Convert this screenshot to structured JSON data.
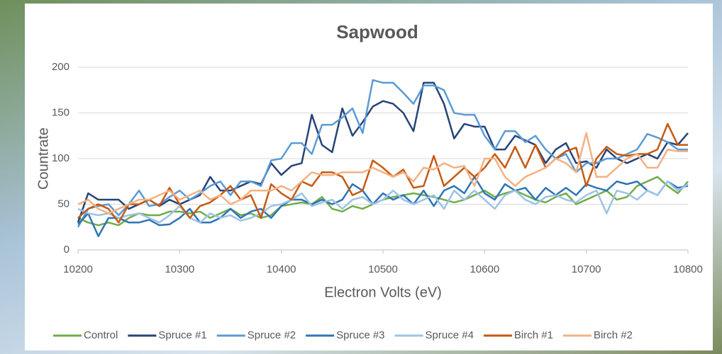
{
  "chart_data": {
    "type": "line",
    "title": "Sapwood",
    "x_label": "Electron Volts (eV)",
    "y_label": "Countrate",
    "xlim": [
      10200,
      10800
    ],
    "xticks": [
      10200,
      10300,
      10400,
      10500,
      10600,
      10700,
      10800
    ],
    "ylim": [
      0,
      200
    ],
    "yticks": [
      0,
      50,
      100,
      150,
      200
    ],
    "grid": true,
    "legend": "bottom",
    "x": [
      10200,
      10210,
      10220,
      10230,
      10240,
      10250,
      10260,
      10270,
      10280,
      10290,
      10300,
      10310,
      10320,
      10330,
      10340,
      10350,
      10360,
      10370,
      10380,
      10390,
      10400,
      10410,
      10420,
      10430,
      10440,
      10450,
      10460,
      10470,
      10480,
      10490,
      10500,
      10510,
      10520,
      10530,
      10540,
      10550,
      10560,
      10570,
      10580,
      10590,
      10600,
      10610,
      10620,
      10630,
      10640,
      10650,
      10660,
      10670,
      10680,
      10690,
      10700,
      10710,
      10720,
      10730,
      10740,
      10750,
      10760,
      10770,
      10780,
      10790,
      10800
    ],
    "series": [
      {
        "name": "Control",
        "color": "#70ad47",
        "values": [
          35,
          30,
          27,
          30,
          27,
          35,
          40,
          38,
          38,
          42,
          42,
          40,
          42,
          35,
          40,
          45,
          38,
          40,
          35,
          38,
          48,
          50,
          52,
          50,
          58,
          45,
          42,
          48,
          45,
          50,
          55,
          58,
          60,
          62,
          60,
          58,
          55,
          52,
          55,
          60,
          65,
          58,
          62,
          65,
          60,
          55,
          52,
          58,
          62,
          50,
          55,
          60,
          65,
          55,
          58,
          70,
          75,
          80,
          70,
          62,
          75
        ]
      },
      {
        "name": "Spruce #1",
        "color": "#264478",
        "values": [
          30,
          62,
          55,
          55,
          55,
          45,
          50,
          55,
          48,
          55,
          50,
          55,
          60,
          80,
          65,
          65,
          70,
          75,
          72,
          95,
          82,
          92,
          95,
          148,
          115,
          107,
          155,
          125,
          140,
          157,
          163,
          160,
          150,
          130,
          183,
          183,
          160,
          122,
          138,
          135,
          135,
          110,
          110,
          125,
          120,
          115,
          95,
          110,
          117,
          95,
          97,
          90,
          110,
          100,
          95,
          100,
          105,
          100,
          118,
          115,
          128
        ]
      },
      {
        "name": "Spruce #2",
        "color": "#5b9bd5",
        "values": [
          25,
          45,
          48,
          50,
          38,
          50,
          65,
          48,
          50,
          58,
          65,
          55,
          62,
          70,
          75,
          60,
          75,
          75,
          70,
          98,
          100,
          117,
          117,
          105,
          137,
          137,
          145,
          155,
          128,
          186,
          183,
          183,
          172,
          160,
          180,
          180,
          175,
          150,
          148,
          148,
          125,
          110,
          130,
          130,
          118,
          125,
          110,
          100,
          105,
          85,
          95,
          95,
          100,
          100,
          105,
          110,
          127,
          123,
          118,
          110,
          110
        ]
      },
      {
        "name": "Spruce #3",
        "color": "#2e75b6",
        "values": [
          28,
          40,
          15,
          35,
          35,
          30,
          30,
          33,
          27,
          28,
          35,
          45,
          30,
          30,
          35,
          45,
          35,
          42,
          45,
          35,
          48,
          55,
          55,
          50,
          55,
          50,
          55,
          72,
          65,
          50,
          62,
          55,
          60,
          50,
          65,
          48,
          65,
          70,
          62,
          80,
          62,
          55,
          72,
          65,
          68,
          55,
          68,
          60,
          68,
          60,
          72,
          68,
          65,
          75,
          72,
          75,
          65,
          60,
          75,
          68,
          70
        ]
      },
      {
        "name": "Spruce #4",
        "color": "#9dc3e6",
        "values": [
          45,
          40,
          38,
          40,
          35,
          38,
          40,
          35,
          30,
          38,
          48,
          35,
          30,
          40,
          35,
          38,
          32,
          35,
          40,
          48,
          50,
          55,
          62,
          48,
          52,
          55,
          45,
          55,
          58,
          50,
          55,
          65,
          55,
          50,
          55,
          60,
          45,
          65,
          55,
          65,
          55,
          45,
          60,
          65,
          55,
          50,
          58,
          60,
          55,
          52,
          60,
          65,
          40,
          65,
          62,
          55,
          65,
          60,
          75,
          65,
          72
        ]
      },
      {
        "name": "Birch #1",
        "color": "#c55a11",
        "values": [
          35,
          45,
          50,
          45,
          30,
          50,
          50,
          55,
          48,
          68,
          50,
          35,
          48,
          52,
          60,
          70,
          55,
          60,
          35,
          72,
          62,
          55,
          75,
          70,
          85,
          85,
          80,
          60,
          65,
          98,
          90,
          80,
          88,
          68,
          70,
          103,
          70,
          80,
          90,
          80,
          90,
          105,
          90,
          113,
          90,
          115,
          90,
          100,
          108,
          112,
          70,
          100,
          113,
          105,
          103,
          105,
          105,
          110,
          138,
          115,
          115
        ]
      },
      {
        "name": "Birch #2",
        "color": "#f4b183",
        "values": [
          50,
          55,
          45,
          40,
          45,
          50,
          55,
          55,
          60,
          65,
          55,
          60,
          65,
          55,
          60,
          50,
          55,
          65,
          65,
          65,
          70,
          65,
          75,
          85,
          82,
          82,
          85,
          85,
          85,
          90,
          85,
          80,
          85,
          75,
          90,
          88,
          95,
          90,
          92,
          70,
          100,
          100,
          80,
          70,
          80,
          85,
          90,
          100,
          95,
          85,
          128,
          80,
          80,
          90,
          100,
          105,
          90,
          90,
          110,
          108,
          108
        ]
      }
    ]
  }
}
